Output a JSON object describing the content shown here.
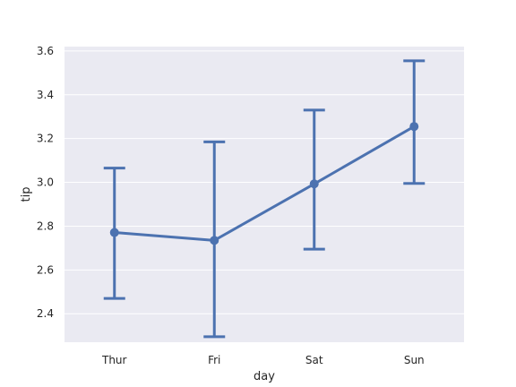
{
  "chart_data": {
    "type": "line",
    "subtype": "pointplot-with-error-bars",
    "title": "",
    "xlabel": "day",
    "ylabel": "tip",
    "categories": [
      "Thur",
      "Fri",
      "Sat",
      "Sun"
    ],
    "series": [
      {
        "values": [
          2.771,
          2.735,
          2.993,
          3.255
        ],
        "ci_low": [
          2.47,
          2.295,
          2.695,
          2.995
        ],
        "ci_high": [
          3.065,
          3.185,
          3.33,
          3.555
        ]
      }
    ],
    "ylim": [
      2.27,
      3.62
    ],
    "yticks": [
      2.4,
      2.6,
      2.8,
      3.0,
      3.2,
      3.4,
      3.6
    ],
    "ytick_labels": [
      "2.4",
      "2.6",
      "2.8",
      "3.0",
      "3.2",
      "3.4",
      "3.6"
    ],
    "grid": true,
    "legend": "none",
    "colors": {
      "plot_background": "#eaeaf2",
      "grid": "#ffffff",
      "series": "#4c72b0",
      "text": "#262626"
    }
  }
}
